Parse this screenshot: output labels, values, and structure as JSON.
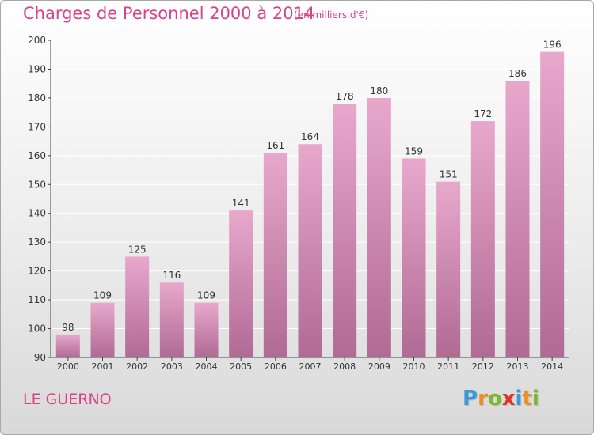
{
  "header": {
    "title": "Charges de Personnel 2000 à 2014",
    "subtitle": "(en milliers d'€)"
  },
  "footer": {
    "commune": "LE GUERNO",
    "logo_letters": [
      "P",
      "r",
      "o",
      "x",
      "i",
      "t",
      "i"
    ],
    "logo_colors": [
      "#3a9ad9",
      "#f08c1e",
      "#7ab829",
      "#e0342a",
      "#3a9ad9",
      "#f08c1e",
      "#7ab829"
    ]
  },
  "colors": {
    "bar_top": "#e8a8cc",
    "bar_bottom": "#b06a94",
    "title": "#d9428a",
    "axis": "#444444",
    "grid": "#ffffff"
  },
  "chart_data": {
    "type": "bar",
    "title": "Charges de Personnel 2000 à 2014",
    "subtitle": "(en milliers d'€)",
    "xlabel": "",
    "ylabel": "",
    "categories": [
      "2000",
      "2001",
      "2002",
      "2003",
      "2004",
      "2005",
      "2006",
      "2007",
      "2008",
      "2009",
      "2010",
      "2011",
      "2012",
      "2013",
      "2014"
    ],
    "values": [
      98,
      109,
      125,
      116,
      109,
      141,
      161,
      164,
      178,
      180,
      159,
      151,
      172,
      186,
      196
    ],
    "ylim": [
      90,
      200
    ],
    "yticks": [
      90,
      100,
      110,
      120,
      130,
      140,
      150,
      160,
      170,
      180,
      190,
      200
    ],
    "grid": true,
    "data_labels": true
  }
}
